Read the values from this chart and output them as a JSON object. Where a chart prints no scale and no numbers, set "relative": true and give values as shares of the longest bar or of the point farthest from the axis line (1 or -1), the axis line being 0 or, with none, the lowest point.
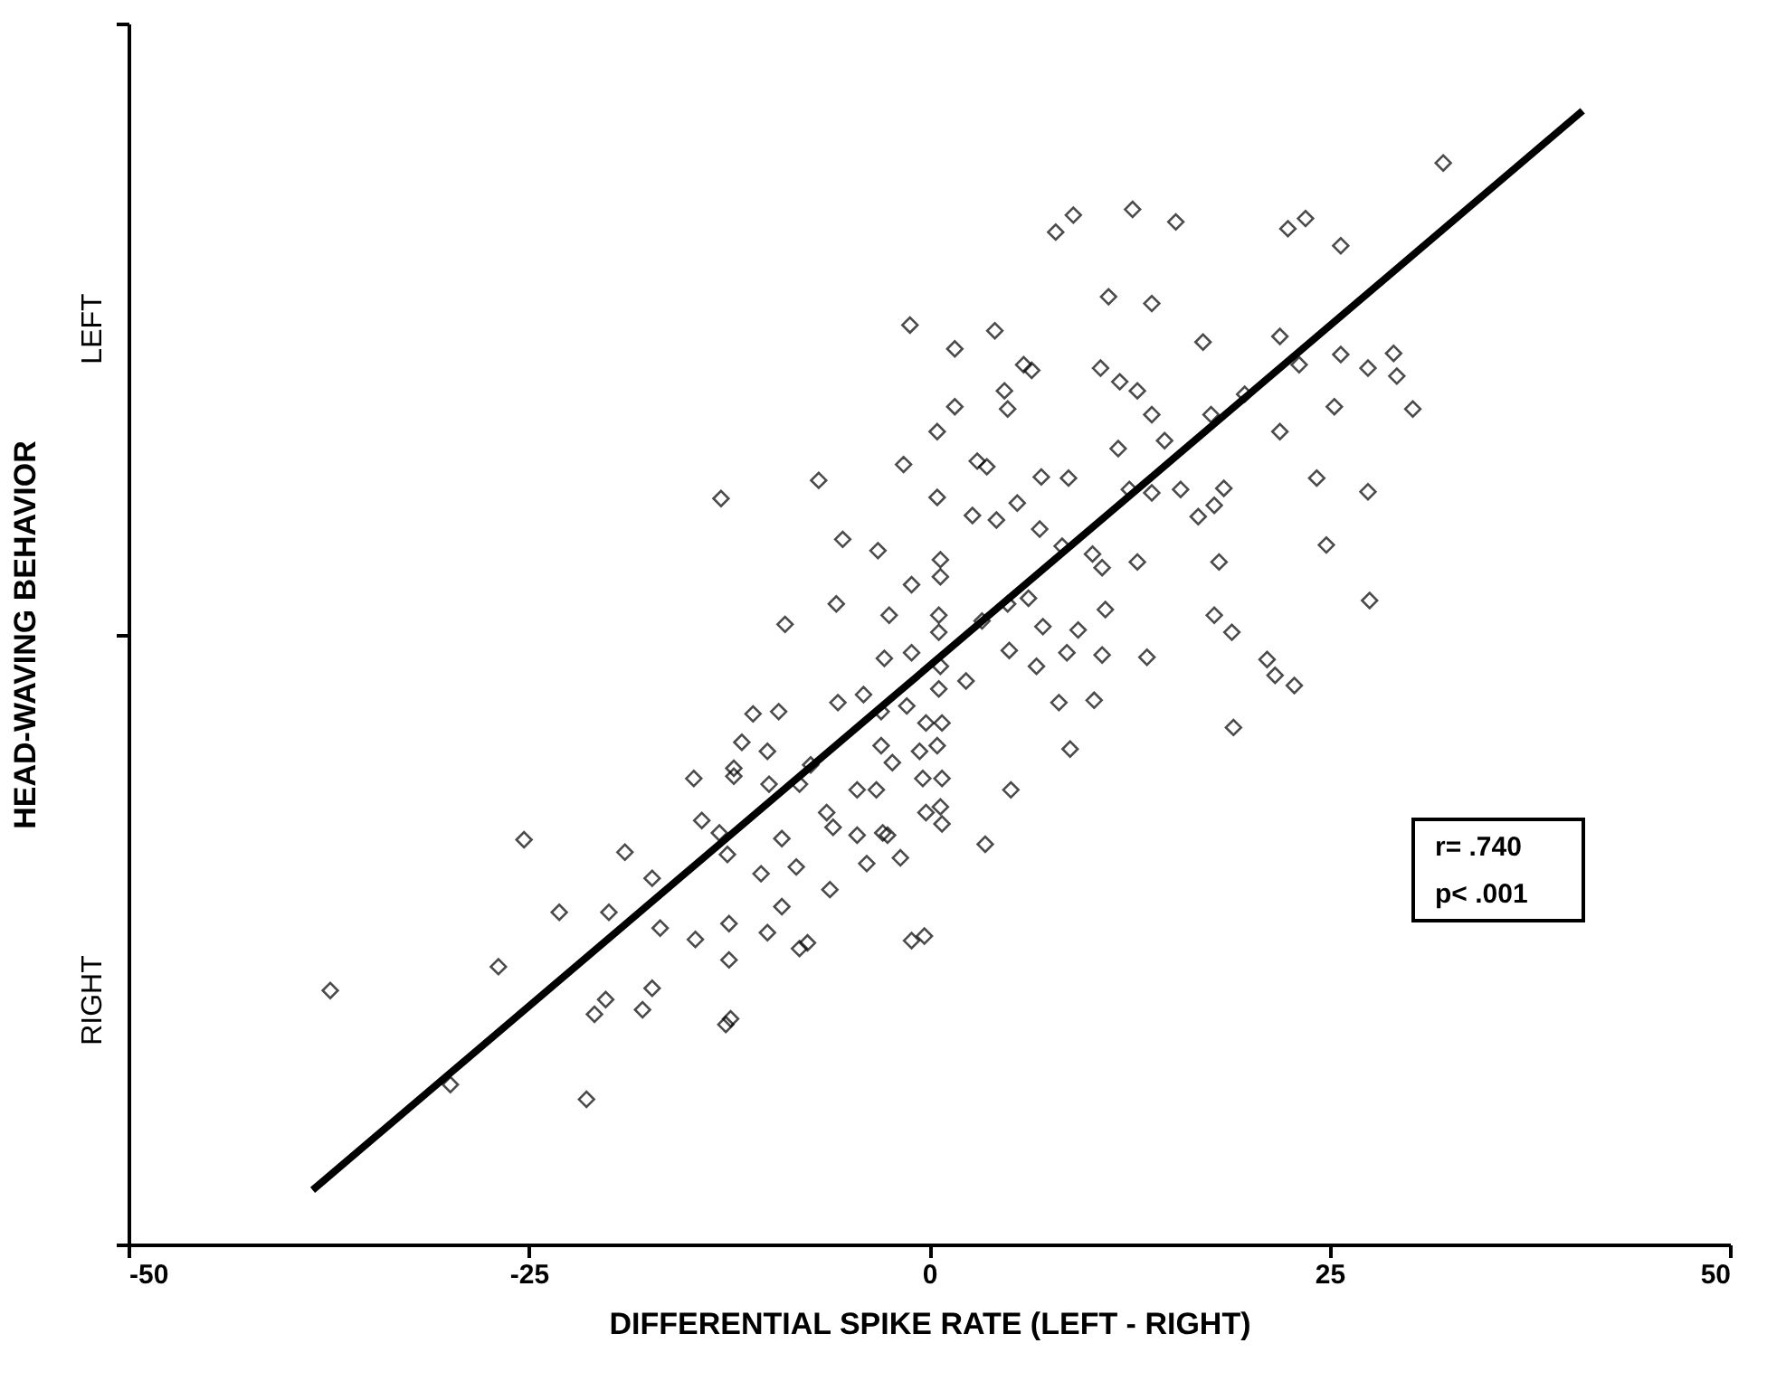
{
  "chart_data": {
    "type": "scatter",
    "xlabel": "DIFFERENTIAL SPIKE RATE (LEFT - RIGHT)",
    "ylabel": "HEAD-WAVING BEHAVIOR",
    "relative": true,
    "xlim": [
      -50,
      50
    ],
    "xticks": [
      -50,
      -25,
      0,
      25,
      50
    ],
    "marker": "diamond",
    "annotations": [
      "LEFT",
      "RIGHT",
      "r=  .740",
      "p<  .001"
    ],
    "series": [
      {
        "color": "#000000",
        "x": [
          32.1,
          7.9,
          9.0,
          12.7,
          15.4,
          22.4,
          23.5,
          25.7,
          11.2,
          13.9,
          -1.2,
          4.1,
          1.6,
          17.1,
          21.9,
          5.9,
          6.4,
          10.7,
          11.9,
          13.0,
          25.7,
          23.1,
          27.4,
          29.0,
          29.2,
          30.2,
          19.7,
          4.7,
          1.6,
          4.9,
          13.9,
          17.6,
          0.5,
          21.9,
          25.3,
          11.8,
          14.7,
          -1.6,
          3.0,
          3.6,
          -6.9,
          7.0,
          8.7,
          12.5,
          13.9,
          15.7,
          18.4,
          24.2,
          27.4,
          -13.0,
          0.5,
          2.7,
          4.2,
          5.5,
          16.8,
          17.8,
          -5.4,
          -3.2,
          6.9,
          8.3,
          10.2,
          10.8,
          13.0,
          18.1,
          24.8,
          0.7,
          0.7,
          -1.1,
          6.2,
          4.9,
          11.0,
          17.8,
          18.9,
          27.5,
          -5.8,
          -2.5,
          -9.0,
          3.3,
          7.1,
          9.3,
          0.6,
          0.6,
          5.0,
          6.7,
          8.6,
          10.8,
          13.6,
          21.1,
          21.6,
          22.8,
          8.1,
          10.3,
          19.0,
          8.8,
          2.3,
          0.7,
          0.6,
          -1.1,
          -2.8,
          -4.1,
          -5.7,
          -9.4,
          -11.0,
          -11.7,
          -10.1,
          -12.2,
          -12.2,
          -7.4,
          -14.7,
          -3.0,
          -1.4,
          -0.2,
          0.8,
          0.5,
          -3.0,
          -2.3,
          -0.6,
          -4.5,
          -3.3,
          -0.4,
          0.8,
          5.1,
          -8.1,
          -10.0,
          -14.2,
          -13.1,
          -12.6,
          -6.4,
          -6.0,
          -9.2,
          -4.5,
          -2.9,
          -2.6,
          -0.2,
          0.7,
          0.8,
          3.5,
          -10.5,
          -8.3,
          -3.9,
          -1.8,
          -6.2,
          -9.2,
          -12.5,
          -14.6,
          -10.1,
          -8.1,
          -7.6,
          -1.1,
          -0.3,
          -16.8,
          -17.3,
          -19.0,
          -20.0,
          -23.1,
          -25.3,
          -26.9,
          -37.4,
          -20.2,
          -20.9,
          -17.3,
          -17.9,
          -12.5,
          -12.7,
          -12.4,
          -29.9,
          -21.4
        ],
        "values": [
          0.954,
          0.893,
          0.908,
          0.913,
          0.902,
          0.896,
          0.905,
          0.881,
          0.836,
          0.83,
          0.811,
          0.806,
          0.79,
          0.796,
          0.801,
          0.776,
          0.771,
          0.773,
          0.761,
          0.753,
          0.785,
          0.776,
          0.773,
          0.786,
          0.766,
          0.737,
          0.75,
          0.753,
          0.739,
          0.737,
          0.732,
          0.732,
          0.717,
          0.717,
          0.739,
          0.702,
          0.709,
          0.688,
          0.691,
          0.686,
          0.674,
          0.677,
          0.676,
          0.666,
          0.663,
          0.666,
          0.667,
          0.676,
          0.664,
          0.658,
          0.659,
          0.643,
          0.639,
          0.654,
          0.642,
          0.652,
          0.622,
          0.612,
          0.631,
          0.616,
          0.609,
          0.597,
          0.602,
          0.602,
          0.617,
          0.604,
          0.589,
          0.582,
          0.57,
          0.565,
          0.56,
          0.555,
          0.54,
          0.568,
          0.565,
          0.555,
          0.547,
          0.55,
          0.545,
          0.542,
          0.555,
          0.54,
          0.524,
          0.51,
          0.522,
          0.52,
          0.518,
          0.516,
          0.502,
          0.493,
          0.478,
          0.48,
          0.456,
          0.437,
          0.497,
          0.51,
          0.49,
          0.522,
          0.517,
          0.485,
          0.478,
          0.47,
          0.468,
          0.443,
          0.435,
          0.42,
          0.413,
          0.423,
          0.411,
          0.47,
          0.475,
          0.46,
          0.46,
          0.44,
          0.44,
          0.425,
          0.435,
          0.401,
          0.401,
          0.411,
          0.411,
          0.401,
          0.406,
          0.406,
          0.374,
          0.363,
          0.344,
          0.381,
          0.368,
          0.358,
          0.361,
          0.363,
          0.361,
          0.381,
          0.386,
          0.371,
          0.353,
          0.327,
          0.333,
          0.336,
          0.341,
          0.313,
          0.298,
          0.283,
          0.269,
          0.275,
          0.261,
          0.266,
          0.268,
          0.272,
          0.279,
          0.323,
          0.346,
          0.293,
          0.293,
          0.357,
          0.245,
          0.224,
          0.216,
          0.203,
          0.226,
          0.207,
          0.251,
          0.194,
          0.199,
          0.141,
          0.128
        ]
      },
      {
        "type": "line",
        "color": "#000000",
        "marker": "none",
        "line_style": "solid",
        "x": [
          -38.5,
          40.8
        ],
        "values": [
          0.048,
          1.0
        ]
      }
    ]
  }
}
